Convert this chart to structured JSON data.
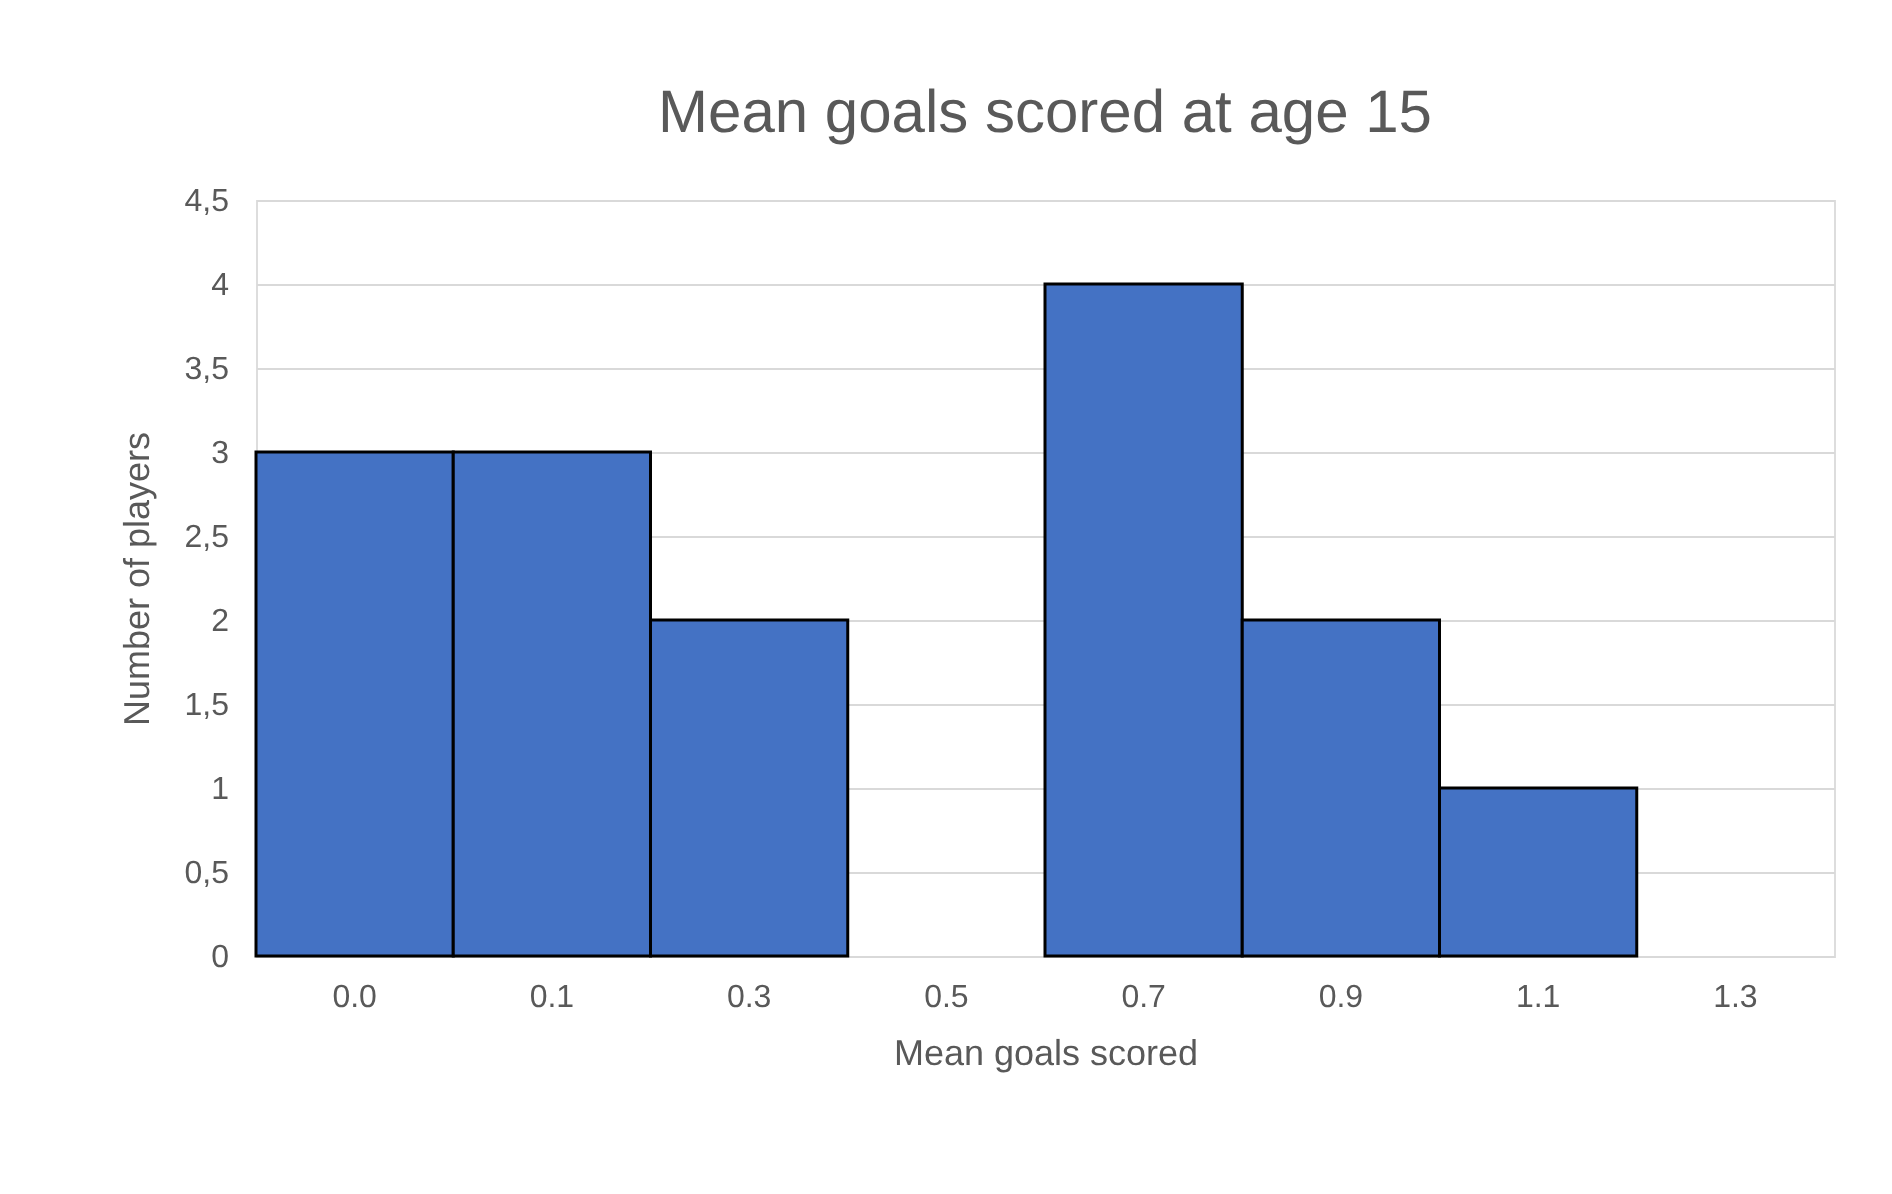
{
  "chart_data": {
    "type": "bar",
    "title": "Mean goals scored at age 15",
    "xlabel": "Mean goals scored",
    "ylabel": "Number of players",
    "categories": [
      "0.0",
      "0.1",
      "0.3",
      "0.5",
      "0.7",
      "0.9",
      "1.1",
      "1.3"
    ],
    "values": [
      3,
      3,
      2,
      0,
      4,
      2,
      1,
      0
    ],
    "color": "#4472c4",
    "ylim": [
      0,
      4.5
    ],
    "yticks": [
      0,
      {
        "value": 0.5,
        "label": "0,5"
      },
      1,
      {
        "value": 1.5,
        "label": "1,5"
      },
      2,
      {
        "value": 2.5,
        "label": "2,5"
      },
      3,
      {
        "value": 3.5,
        "label": "3,5"
      },
      4,
      {
        "value": 4.5,
        "label": "4,5"
      }
    ],
    "grid": "y"
  }
}
